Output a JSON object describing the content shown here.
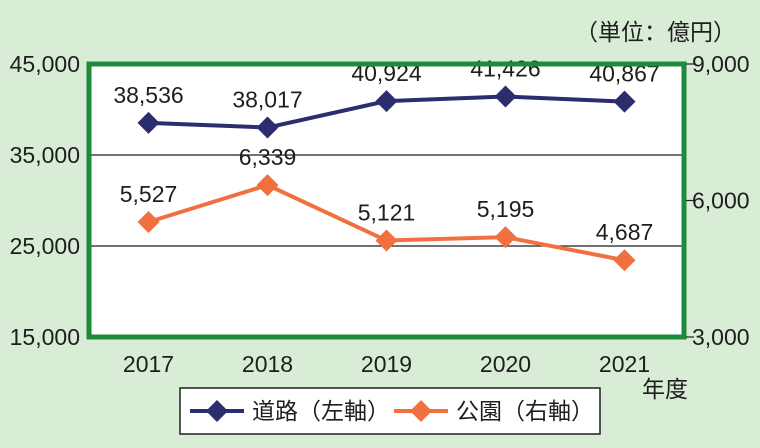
{
  "chart_data": {
    "type": "line",
    "unit_note": "（単位：億円）",
    "xlabel": "年度",
    "categories": [
      "2017",
      "2018",
      "2019",
      "2020",
      "2021"
    ],
    "y_left": {
      "ticks": [
        "45,000",
        "35,000",
        "25,000",
        "15,000"
      ],
      "range": [
        15000,
        45000
      ]
    },
    "y_right": {
      "ticks": [
        "9,000",
        "6,000",
        "3,000"
      ],
      "range": [
        3000,
        9000
      ]
    },
    "grid": "horizontal at 25,000 and 35,000",
    "legend_position": "bottom",
    "series": [
      {
        "name": "道路（左軸）",
        "axis": "left",
        "color": "#2b2d6e",
        "marker": "diamond",
        "values": [
          38536,
          38017,
          40924,
          41426,
          40867
        ],
        "labels": [
          "38,536",
          "38,017",
          "40,924",
          "41,426",
          "40,867"
        ]
      },
      {
        "name": "公園（右軸）",
        "axis": "right",
        "color": "#f07040",
        "marker": "diamond",
        "values": [
          5527,
          6339,
          5121,
          5195,
          4687
        ],
        "labels": [
          "5,527",
          "6,339",
          "5,121",
          "5,195",
          "4,687"
        ]
      }
    ],
    "frame_color": "#1e8a3c"
  }
}
